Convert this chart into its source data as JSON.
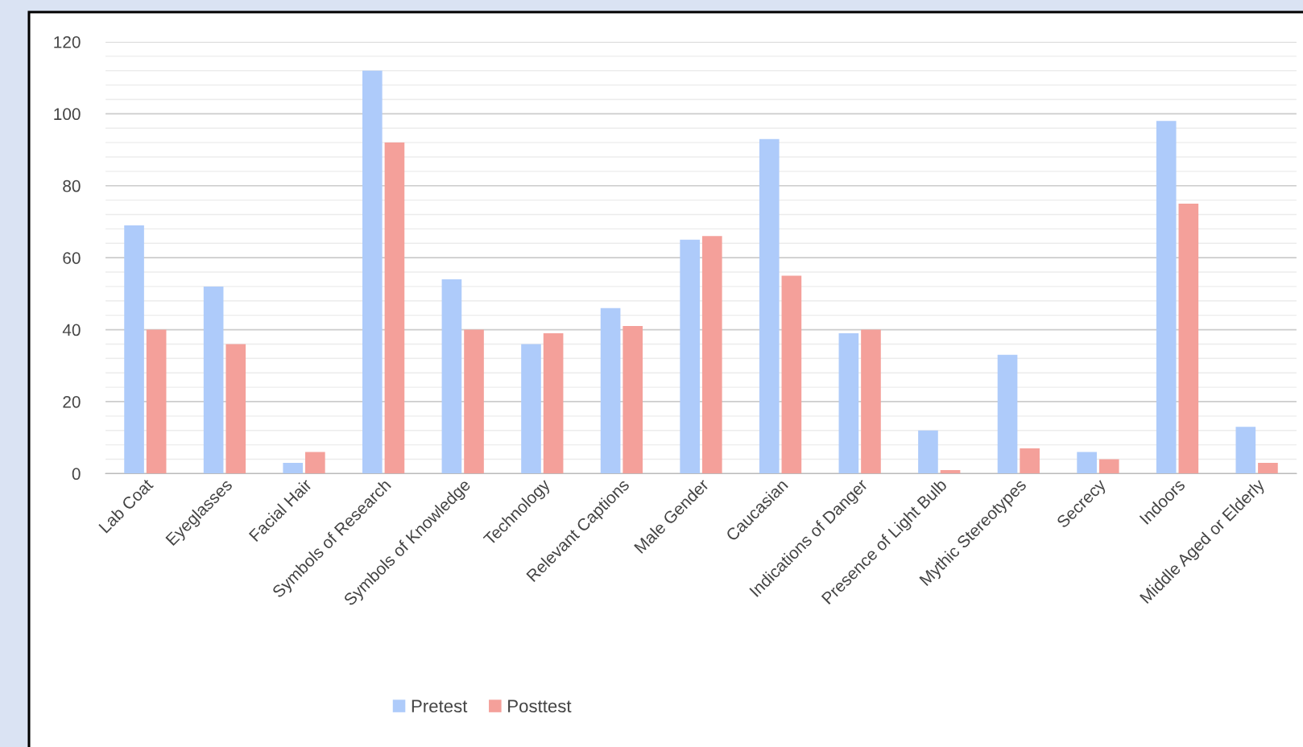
{
  "chart_data": {
    "type": "bar",
    "categories": [
      "Lab Coat",
      "Eyeglasses",
      "Facial Hair",
      "Symbols of Research",
      "Symbols of Knowledge",
      "Technology",
      "Relevant Captions",
      "Male Gender",
      "Caucasian",
      "Indications of Danger",
      "Presence of Light Bulb",
      "Mythic Stereotypes",
      "Secrecy",
      "Indoors",
      "Middle Aged or Elderly"
    ],
    "series": [
      {
        "name": "Pretest",
        "color": "#aecbfa",
        "values": [
          69,
          52,
          3,
          112,
          54,
          36,
          46,
          65,
          93,
          39,
          12,
          33,
          6,
          98,
          13
        ]
      },
      {
        "name": "Posttest",
        "color": "#f4a09a",
        "values": [
          40,
          36,
          6,
          92,
          40,
          39,
          41,
          66,
          55,
          40,
          1,
          7,
          4,
          75,
          3
        ]
      }
    ],
    "ylim": [
      0,
      120
    ],
    "yticks": [
      0,
      {
        "value": 4,
        "label": null
      },
      {
        "value": 8,
        "label": null
      },
      {
        "value": 12,
        "label": null
      },
      {
        "value": 16,
        "label": null
      },
      20,
      {
        "value": 24,
        "label": null
      },
      {
        "value": 28,
        "label": null
      },
      {
        "value": 32,
        "label": null
      },
      {
        "value": 36,
        "label": null
      },
      40,
      {
        "value": 44,
        "label": null
      },
      {
        "value": 48,
        "label": null
      },
      {
        "value": 52,
        "label": null
      },
      {
        "value": 56,
        "label": null
      },
      60,
      {
        "value": 64,
        "label": null
      },
      {
        "value": 68,
        "label": null
      },
      {
        "value": 72,
        "label": null
      },
      {
        "value": 76,
        "label": null
      },
      80,
      {
        "value": 84,
        "label": null
      },
      {
        "value": 88,
        "label": null
      },
      {
        "value": 92,
        "label": null
      },
      {
        "value": 96,
        "label": null
      },
      100,
      {
        "value": 104,
        "label": null
      },
      {
        "value": 108,
        "label": null
      },
      {
        "value": 112,
        "label": null
      },
      {
        "value": 116,
        "label": null
      },
      120
    ],
    "grid": "y",
    "legend": "bottom"
  }
}
